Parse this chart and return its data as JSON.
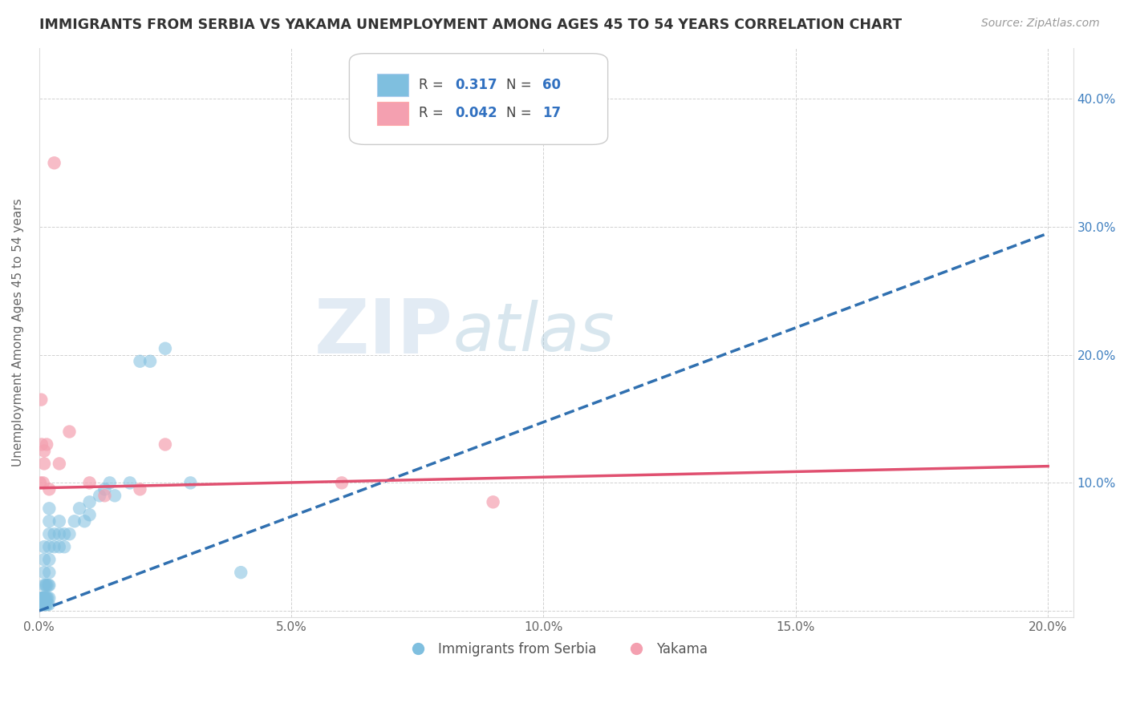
{
  "title": "IMMIGRANTS FROM SERBIA VS YAKAMA UNEMPLOYMENT AMONG AGES 45 TO 54 YEARS CORRELATION CHART",
  "source": "Source: ZipAtlas.com",
  "ylabel": "Unemployment Among Ages 45 to 54 years",
  "xlim": [
    0.0,
    0.205
  ],
  "ylim": [
    -0.005,
    0.44
  ],
  "xtick_vals": [
    0.0,
    0.05,
    0.1,
    0.15,
    0.2
  ],
  "xticklabels": [
    "0.0%",
    "5.0%",
    "10.0%",
    "15.0%",
    "20.0%"
  ],
  "ytick_vals": [
    0.0,
    0.1,
    0.2,
    0.3,
    0.4
  ],
  "yticklabels_right": [
    "",
    "10.0%",
    "20.0%",
    "30.0%",
    "40.0%"
  ],
  "blue_color": "#7fbfdf",
  "pink_color": "#f4a0b0",
  "trend_blue_color": "#3070b0",
  "trend_pink_color": "#e05070",
  "R_blue": 0.317,
  "N_blue": 60,
  "R_pink": 0.042,
  "N_pink": 17,
  "legend_labels": [
    "Immigrants from Serbia",
    "Yakama"
  ],
  "watermark_zip": "ZIP",
  "watermark_atlas": "atlas",
  "blue_x": [
    0.0002,
    0.0003,
    0.0004,
    0.0005,
    0.0005,
    0.0006,
    0.0006,
    0.0007,
    0.0007,
    0.0008,
    0.0008,
    0.0009,
    0.0009,
    0.001,
    0.001,
    0.001,
    0.001,
    0.001,
    0.001,
    0.0012,
    0.0013,
    0.0013,
    0.0014,
    0.0015,
    0.0015,
    0.0016,
    0.0017,
    0.0018,
    0.0019,
    0.002,
    0.002,
    0.002,
    0.002,
    0.002,
    0.002,
    0.002,
    0.002,
    0.003,
    0.003,
    0.004,
    0.004,
    0.004,
    0.005,
    0.005,
    0.006,
    0.007,
    0.008,
    0.009,
    0.01,
    0.01,
    0.012,
    0.013,
    0.014,
    0.015,
    0.018,
    0.02,
    0.022,
    0.025,
    0.03,
    0.04
  ],
  "blue_y": [
    0.005,
    0.005,
    0.005,
    0.005,
    0.01,
    0.005,
    0.01,
    0.005,
    0.01,
    0.005,
    0.01,
    0.005,
    0.01,
    0.005,
    0.01,
    0.02,
    0.03,
    0.04,
    0.05,
    0.005,
    0.01,
    0.02,
    0.005,
    0.01,
    0.02,
    0.005,
    0.01,
    0.02,
    0.005,
    0.01,
    0.02,
    0.03,
    0.04,
    0.05,
    0.06,
    0.07,
    0.08,
    0.05,
    0.06,
    0.05,
    0.06,
    0.07,
    0.05,
    0.06,
    0.06,
    0.07,
    0.08,
    0.07,
    0.075,
    0.085,
    0.09,
    0.095,
    0.1,
    0.09,
    0.1,
    0.195,
    0.195,
    0.205,
    0.1,
    0.03
  ],
  "pink_x": [
    0.0002,
    0.0004,
    0.0005,
    0.0008,
    0.001,
    0.001,
    0.0015,
    0.002,
    0.003,
    0.004,
    0.006,
    0.01,
    0.013,
    0.02,
    0.025,
    0.06,
    0.09
  ],
  "pink_y": [
    0.1,
    0.165,
    0.13,
    0.1,
    0.115,
    0.125,
    0.13,
    0.095,
    0.35,
    0.115,
    0.14,
    0.1,
    0.09,
    0.095,
    0.13,
    0.1,
    0.085
  ],
  "blue_trendline_x": [
    0.0,
    0.2
  ],
  "blue_trendline_y": [
    0.0,
    0.295
  ],
  "pink_trendline_x": [
    0.0,
    0.2
  ],
  "pink_trendline_y": [
    0.096,
    0.113
  ]
}
